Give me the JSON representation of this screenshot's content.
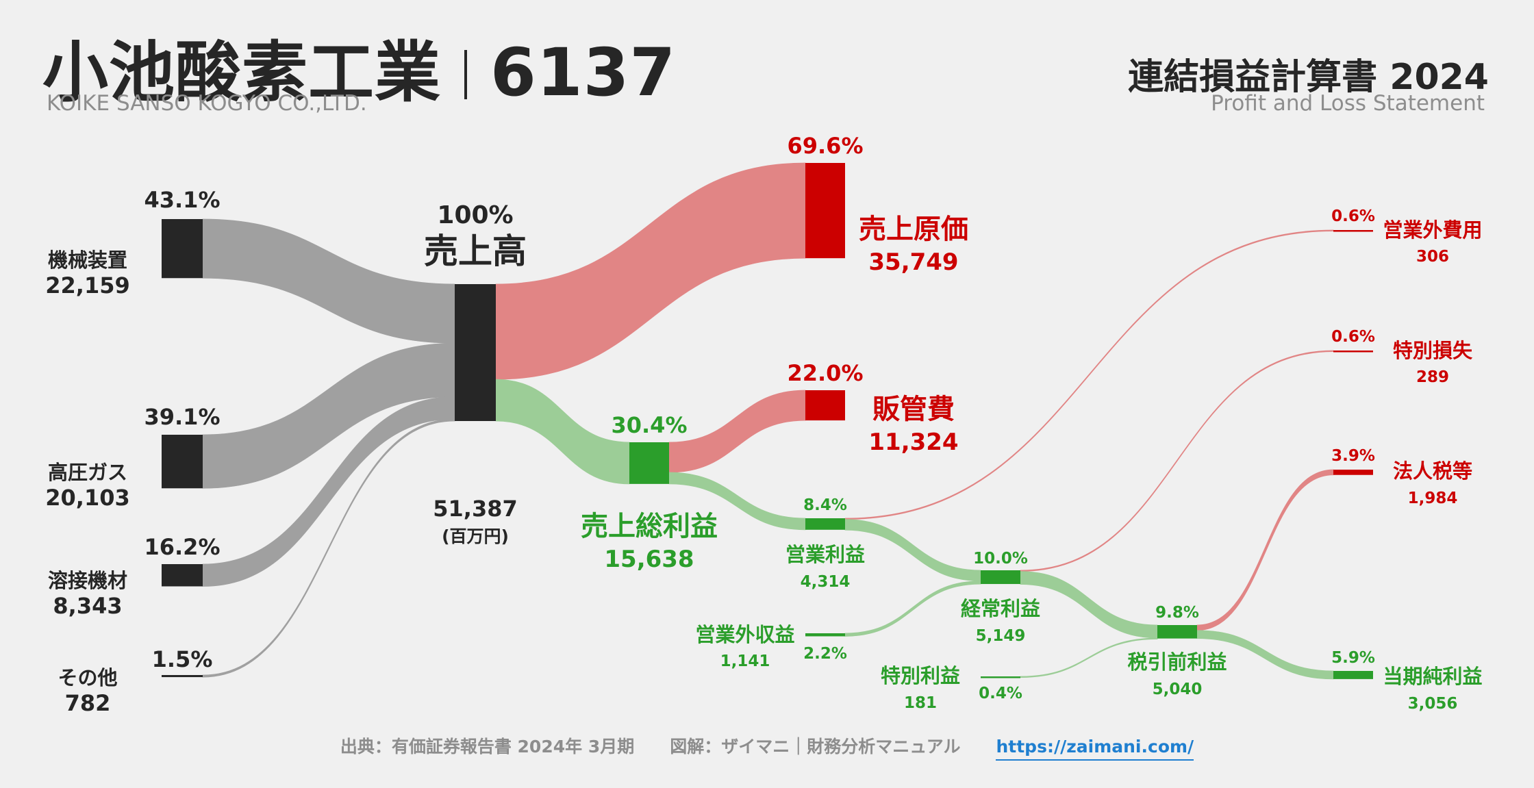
{
  "header": {
    "company": "小池酸素工業",
    "ticker": "6137",
    "company_en": "KOIKE SANSO KOGYO CO.,LTD.",
    "statement": "連結損益計算書 2024",
    "statement_en": "Profit and Loss Statement"
  },
  "footer": {
    "source": "出典：有価証券報告書 2024年 3月期",
    "credit": "図解：ザイマニ｜財務分析マニュアル",
    "link": "https://zaimani.com/"
  },
  "colors": {
    "dark": "#262626",
    "gray_flow": "#a0a0a0",
    "red": "#cc0000",
    "red_flow": "#e18585",
    "green": "#2b9e2b",
    "green_flow": "#9ccd97",
    "link": "#1f7fd0"
  },
  "chart_data": {
    "type": "sankey",
    "unit": "(百万円)",
    "nodes": [
      {
        "id": "machinery",
        "label": "機械装置",
        "value": 22159,
        "value_text": "22,159",
        "pct": "43.1%"
      },
      {
        "id": "gas",
        "label": "高圧ガス",
        "value": 20103,
        "value_text": "20,103",
        "pct": "39.1%"
      },
      {
        "id": "welding",
        "label": "溶接機材",
        "value": 8343,
        "value_text": "8,343",
        "pct": "16.2%"
      },
      {
        "id": "other",
        "label": "その他",
        "value": 782,
        "value_text": "782",
        "pct": "1.5%"
      },
      {
        "id": "revenue",
        "label": "売上高",
        "value": 51387,
        "value_text": "51,387",
        "pct": "100%"
      },
      {
        "id": "cogs",
        "label": "売上原価",
        "value": 35749,
        "value_text": "35,749",
        "pct": "69.6%"
      },
      {
        "id": "gross_profit",
        "label": "売上総利益",
        "value": 15638,
        "value_text": "15,638",
        "pct": "30.4%"
      },
      {
        "id": "sga",
        "label": "販管費",
        "value": 11324,
        "value_text": "11,324",
        "pct": "22.0%"
      },
      {
        "id": "operating_profit",
        "label": "営業利益",
        "value": 4314,
        "value_text": "4,314",
        "pct": "8.4%"
      },
      {
        "id": "non_op_income",
        "label": "営業外収益",
        "value": 1141,
        "value_text": "1,141",
        "pct": "2.2%"
      },
      {
        "id": "non_op_expense",
        "label": "営業外費用",
        "value": 306,
        "value_text": "306",
        "pct": "0.6%"
      },
      {
        "id": "ordinary_profit",
        "label": "経常利益",
        "value": 5149,
        "value_text": "5,149",
        "pct": "10.0%"
      },
      {
        "id": "extra_gain",
        "label": "特別利益",
        "value": 181,
        "value_text": "181",
        "pct": "0.4%"
      },
      {
        "id": "extra_loss",
        "label": "特別損失",
        "value": 289,
        "value_text": "289",
        "pct": "0.6%"
      },
      {
        "id": "pretax_profit",
        "label": "税引前利益",
        "value": 5040,
        "value_text": "5,040",
        "pct": "9.8%"
      },
      {
        "id": "tax",
        "label": "法人税等",
        "value": 1984,
        "value_text": "1,984",
        "pct": "3.9%"
      },
      {
        "id": "net_profit",
        "label": "当期純利益",
        "value": 3056,
        "value_text": "3,056",
        "pct": "5.9%"
      }
    ],
    "links": [
      {
        "source": "machinery",
        "target": "revenue",
        "value": 22159
      },
      {
        "source": "gas",
        "target": "revenue",
        "value": 20103
      },
      {
        "source": "welding",
        "target": "revenue",
        "value": 8343
      },
      {
        "source": "other",
        "target": "revenue",
        "value": 782
      },
      {
        "source": "revenue",
        "target": "cogs",
        "value": 35749
      },
      {
        "source": "revenue",
        "target": "gross_profit",
        "value": 15638
      },
      {
        "source": "gross_profit",
        "target": "sga",
        "value": 11324
      },
      {
        "source": "gross_profit",
        "target": "operating_profit",
        "value": 4314
      },
      {
        "source": "operating_profit",
        "target": "non_op_expense",
        "value": 306
      },
      {
        "source": "operating_profit",
        "target": "ordinary_profit",
        "value": 4008
      },
      {
        "source": "non_op_income",
        "target": "ordinary_profit",
        "value": 1141
      },
      {
        "source": "ordinary_profit",
        "target": "extra_loss",
        "value": 289
      },
      {
        "source": "ordinary_profit",
        "target": "pretax_profit",
        "value": 4860
      },
      {
        "source": "extra_gain",
        "target": "pretax_profit",
        "value": 181
      },
      {
        "source": "pretax_profit",
        "target": "tax",
        "value": 1984
      },
      {
        "source": "pretax_profit",
        "target": "net_profit",
        "value": 3056
      }
    ]
  }
}
